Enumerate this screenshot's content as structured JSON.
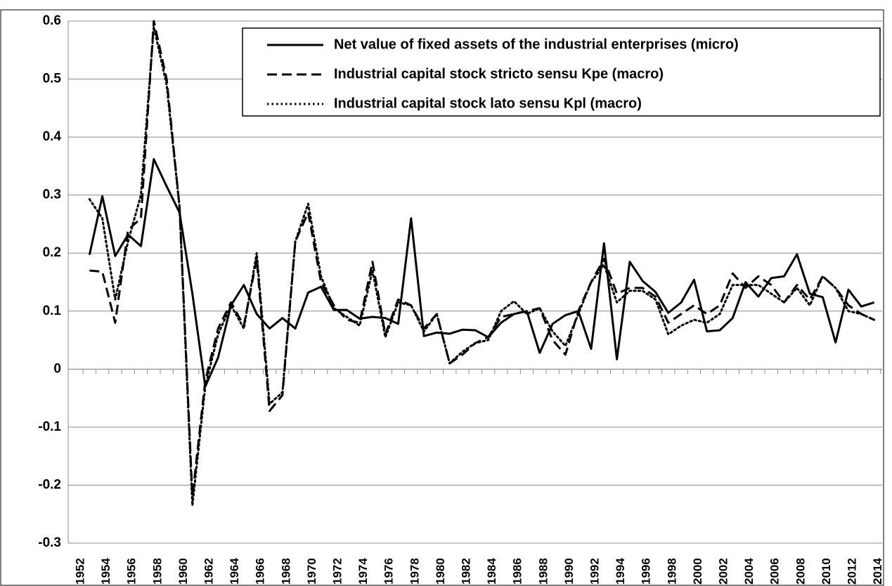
{
  "chart_data": {
    "type": "line",
    "categories": [
      "1952",
      null,
      "1954",
      null,
      "1956",
      null,
      "1958",
      null,
      "1960",
      null,
      "1962",
      null,
      "1964",
      null,
      "1966",
      null,
      "1968",
      null,
      "1970",
      null,
      "1972",
      null,
      "1974",
      null,
      "1976",
      null,
      "1978",
      null,
      "1980",
      null,
      "1982",
      null,
      "1984",
      null,
      "1986",
      null,
      "1988",
      null,
      "1990",
      null,
      "1992",
      null,
      "1994",
      null,
      "1996",
      null,
      "1998",
      null,
      "2000",
      null,
      "2002",
      null,
      "2004",
      null,
      "2006",
      null,
      "2008",
      null,
      "2010",
      null,
      "2012",
      null,
      "2014"
    ],
    "series": [
      {
        "name": "Net value of fixed assets of the industrial enterprises (micro)",
        "color": "#000000",
        "dash": "solid",
        "values": [
          null,
          0.197,
          0.298,
          0.195,
          0.232,
          0.212,
          0.362,
          0.315,
          0.27,
          0.13,
          -0.03,
          0.02,
          0.11,
          0.145,
          0.095,
          0.07,
          0.088,
          0.07,
          0.132,
          0.142,
          0.102,
          0.102,
          0.087,
          0.09,
          0.088,
          0.078,
          0.26,
          0.057,
          0.063,
          0.061,
          0.068,
          0.067,
          0.055,
          0.08,
          0.095,
          0.1,
          0.028,
          0.078,
          0.093,
          0.1,
          0.035,
          0.217,
          0.017,
          0.185,
          0.152,
          0.133,
          0.097,
          0.115,
          0.154,
          0.065,
          0.067,
          0.088,
          0.15,
          0.125,
          0.157,
          0.16,
          0.198,
          0.13,
          0.124,
          0.046,
          0.137,
          0.108,
          0.115
        ]
      },
      {
        "name": "Industrial capital stock stricto sensu Kpe (macro)",
        "color": "#000000",
        "dash": "dashed",
        "values": [
          null,
          0.17,
          0.168,
          0.08,
          0.24,
          0.26,
          0.6,
          0.5,
          0.28,
          -0.22,
          -0.02,
          0.07,
          0.115,
          0.075,
          0.19,
          -0.072,
          -0.045,
          0.22,
          0.27,
          0.15,
          0.11,
          0.085,
          0.08,
          0.185,
          0.06,
          0.12,
          0.11,
          0.07,
          0.095,
          0.01,
          0.025,
          0.045,
          0.055,
          0.09,
          0.095,
          0.1,
          0.105,
          0.05,
          0.025,
          0.1,
          0.15,
          0.19,
          0.13,
          0.14,
          0.14,
          0.125,
          0.08,
          0.095,
          0.11,
          0.095,
          0.11,
          0.165,
          0.14,
          0.16,
          0.145,
          0.115,
          0.145,
          0.12,
          0.16,
          0.14,
          0.11,
          0.095,
          0.085
        ]
      },
      {
        "name": "Industrial capital stock lato sensu Kpl (macro)",
        "color": "#000000",
        "dash": "dotted",
        "values": [
          null,
          0.293,
          0.26,
          0.12,
          0.22,
          0.3,
          0.59,
          0.49,
          0.28,
          -0.235,
          -0.03,
          0.06,
          0.11,
          0.07,
          0.2,
          -0.06,
          -0.04,
          0.22,
          0.285,
          0.16,
          0.105,
          0.09,
          0.075,
          0.17,
          0.055,
          0.115,
          0.11,
          0.065,
          0.095,
          0.01,
          0.03,
          0.045,
          0.05,
          0.1,
          0.117,
          0.095,
          0.105,
          0.065,
          0.04,
          0.095,
          0.15,
          0.18,
          0.115,
          0.135,
          0.135,
          0.12,
          0.06,
          0.075,
          0.085,
          0.08,
          0.095,
          0.145,
          0.145,
          0.145,
          0.13,
          0.115,
          0.14,
          0.11,
          0.16,
          0.14,
          0.1,
          0.095,
          0.085
        ]
      }
    ],
    "ylim": [
      -0.3,
      0.6
    ],
    "yticks": [
      -0.3,
      -0.2,
      -0.1,
      0,
      0.1,
      0.2,
      0.3,
      0.4,
      0.5,
      0.6
    ],
    "grid": true,
    "legend": "top-right"
  }
}
